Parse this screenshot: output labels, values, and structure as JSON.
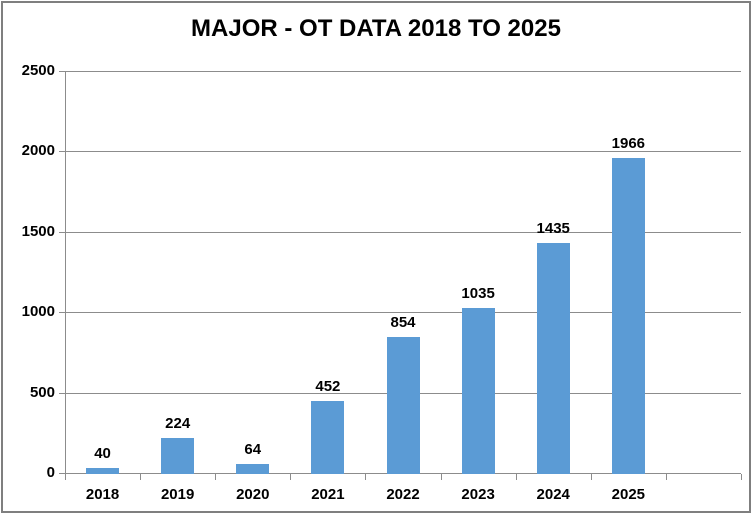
{
  "chart_data": {
    "type": "bar",
    "title": "MAJOR - OT DATA 2018 TO 2025",
    "categories": [
      "2018",
      "2019",
      "2020",
      "2021",
      "2022",
      "2023",
      "2024",
      "2025"
    ],
    "values": [
      40,
      224,
      64,
      452,
      854,
      1035,
      1435,
      1966
    ],
    "data_labels": [
      "40",
      "224",
      "64",
      "452",
      "854",
      "1035",
      "1435",
      "1966"
    ],
    "xlabel": "",
    "ylabel": "",
    "y_ticks": [
      0,
      500,
      1000,
      1500,
      2000,
      2500
    ],
    "ylim": [
      0,
      2500
    ],
    "grid": "horizontal",
    "legend": "none",
    "extra_empty_slots": 1,
    "bar_color": "#5b9bd5",
    "axis_color": "#8c8c8c",
    "text_color": "#000000",
    "border_color": "#7f7f7f"
  }
}
